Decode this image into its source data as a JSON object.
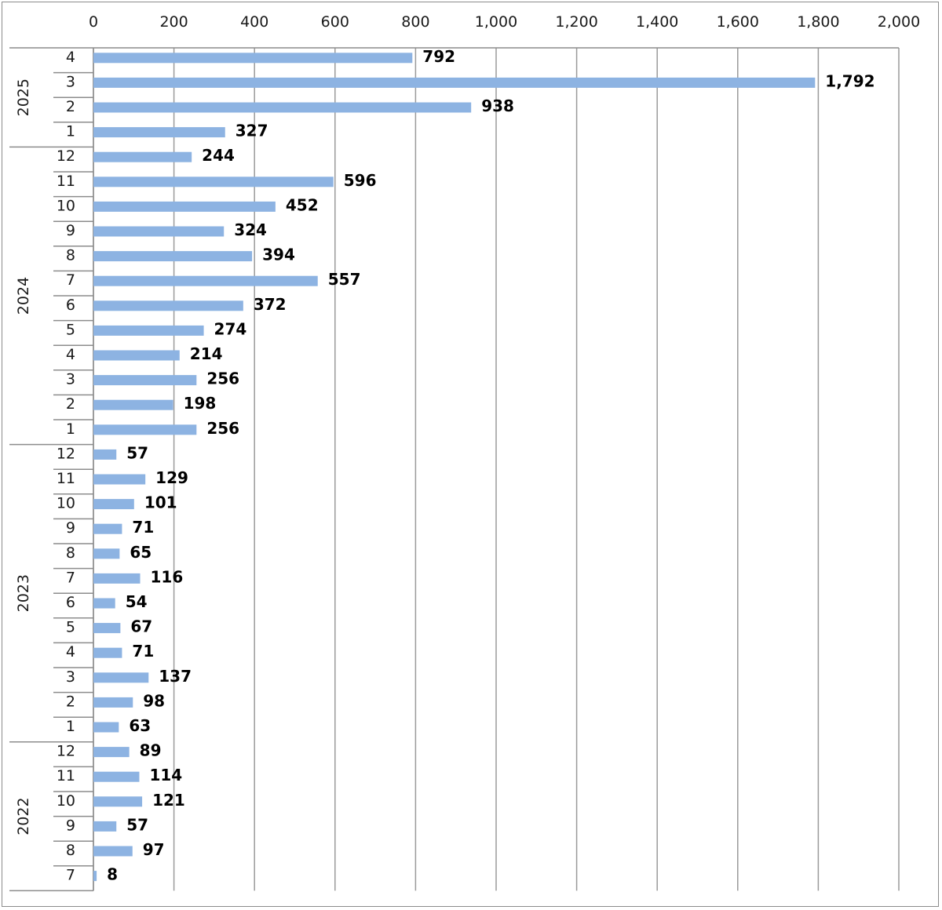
{
  "chart_data": {
    "type": "bar",
    "orientation": "horizontal",
    "title": "",
    "xlabel": "",
    "ylabel": "",
    "xlim": [
      0,
      2000
    ],
    "xticks": [
      0,
      200,
      400,
      600,
      800,
      1000,
      1200,
      1400,
      1600,
      1800,
      2000
    ],
    "xtick_labels": [
      "0",
      "200",
      "400",
      "600",
      "800",
      "1,000",
      "1,200",
      "1,400",
      "1,600",
      "1,800",
      "2,000"
    ],
    "grid": true,
    "legend": "none",
    "bar_color": "#8db3e2",
    "groups": [
      {
        "label": "2025",
        "categories": [
          "4",
          "3",
          "2",
          "1"
        ],
        "values": [
          792,
          1792,
          938,
          327
        ],
        "value_labels": [
          "792",
          "1,792",
          "938",
          "327"
        ]
      },
      {
        "label": "2024",
        "categories": [
          "12",
          "11",
          "10",
          "9",
          "8",
          "7",
          "6",
          "5",
          "4",
          "3",
          "2",
          "1"
        ],
        "values": [
          244,
          596,
          452,
          324,
          394,
          557,
          372,
          274,
          214,
          256,
          198,
          256
        ],
        "value_labels": [
          "244",
          "596",
          "452",
          "324",
          "394",
          "557",
          "372",
          "274",
          "214",
          "256",
          "198",
          "256"
        ]
      },
      {
        "label": "2023",
        "categories": [
          "12",
          "11",
          "10",
          "9",
          "8",
          "7",
          "6",
          "5",
          "4",
          "3",
          "2",
          "1"
        ],
        "values": [
          57,
          129,
          101,
          71,
          65,
          116,
          54,
          67,
          71,
          137,
          98,
          63
        ],
        "value_labels": [
          "57",
          "129",
          "101",
          "71",
          "65",
          "116",
          "54",
          "67",
          "71",
          "137",
          "98",
          "63"
        ]
      },
      {
        "label": "2022",
        "categories": [
          "12",
          "11",
          "10",
          "9",
          "8",
          "7"
        ],
        "values": [
          89,
          114,
          121,
          57,
          97,
          8
        ],
        "value_labels": [
          "89",
          "114",
          "121",
          "57",
          "97",
          "8"
        ]
      }
    ]
  }
}
